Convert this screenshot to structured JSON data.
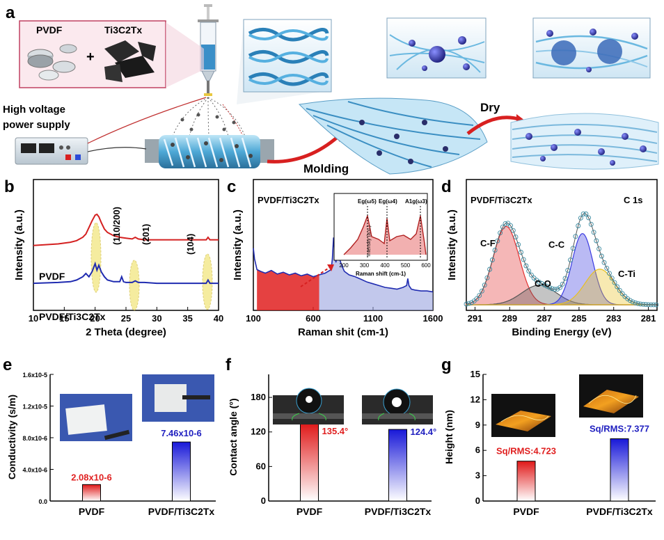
{
  "panel_a": {
    "label": "a",
    "pvdf": "PVDF",
    "plus": "+",
    "ti3c2tx": "Ti3C2Tx",
    "power_line1": "High voltage",
    "power_line2": "power supply",
    "molding": "Molding",
    "dry": "Dry"
  },
  "chart_data": [
    {
      "id": "b",
      "panel_label": "b",
      "type": "line",
      "xlabel": "2 Theta (degree)",
      "ylabel": "Intensity (a.u.)",
      "xlim": [
        10,
        40
      ],
      "xticks": [
        10,
        15,
        20,
        25,
        30,
        35,
        40
      ],
      "series": [
        {
          "name": "PVDF",
          "color": "#d42020",
          "x": [
            10,
            14,
            16,
            17,
            18,
            18.5,
            19,
            19.5,
            20,
            20.3,
            20.6,
            21,
            21.5,
            22,
            23,
            24,
            25,
            26,
            26.5,
            27,
            28,
            30,
            33,
            36,
            38,
            38.3,
            38.6,
            40
          ],
          "y": [
            0.62,
            0.64,
            0.66,
            0.68,
            0.72,
            0.76,
            0.84,
            0.92,
            0.99,
            1.0,
            0.97,
            0.9,
            0.82,
            0.78,
            0.74,
            0.72,
            0.71,
            0.7,
            0.72,
            0.7,
            0.69,
            0.69,
            0.69,
            0.69,
            0.69,
            0.72,
            0.69,
            0.69
          ]
        },
        {
          "name": "PVDF/Ti3C2Tx",
          "color": "#1f2bb0",
          "x": [
            10,
            14,
            16,
            17,
            18,
            18.5,
            19,
            19.5,
            19.8,
            20,
            20.3,
            20.6,
            21,
            21.5,
            22,
            23,
            24,
            24.3,
            24.6,
            25,
            26,
            26.5,
            27,
            28,
            30,
            33,
            36,
            38,
            38.3,
            38.6,
            40
          ],
          "y": [
            0.16,
            0.17,
            0.18,
            0.2,
            0.24,
            0.28,
            0.24,
            0.3,
            0.36,
            0.4,
            0.32,
            0.38,
            0.3,
            0.24,
            0.2,
            0.18,
            0.18,
            0.24,
            0.18,
            0.17,
            0.17,
            0.19,
            0.17,
            0.17,
            0.16,
            0.16,
            0.16,
            0.16,
            0.2,
            0.16,
            0.16
          ]
        }
      ],
      "peak_labels": [
        "(110/200)",
        "(201)",
        "(104)"
      ],
      "curve_labels": [
        "PVDF",
        "PVDF/Ti3C2Tx"
      ]
    },
    {
      "id": "c",
      "panel_label": "c",
      "type": "line",
      "title": "PVDF/Ti3C2Tx",
      "xlabel": "Raman shit (cm-1)",
      "ylabel": "Intensity (a.u.)",
      "xlim": [
        100,
        1600
      ],
      "xticks": [
        100,
        600,
        1100,
        1600
      ],
      "series": [
        {
          "name": "Raman",
          "color": "#1f2bb0",
          "x": [
            100,
            110,
            130,
            160,
            200,
            250,
            300,
            350,
            400,
            450,
            500,
            550,
            600,
            650,
            700,
            750,
            760,
            770,
            780,
            790,
            800,
            820,
            840,
            860,
            880,
            900,
            950,
            1000,
            1050,
            1100,
            1150,
            1200,
            1250,
            1300,
            1350,
            1380,
            1390,
            1400,
            1420,
            1450,
            1500,
            1550,
            1600
          ],
          "y": [
            0.62,
            0.5,
            0.38,
            0.36,
            0.34,
            0.37,
            0.33,
            0.35,
            0.32,
            0.34,
            0.31,
            0.33,
            0.3,
            0.32,
            0.34,
            0.38,
            0.5,
            0.74,
            0.55,
            0.46,
            0.6,
            0.5,
            0.42,
            0.36,
            0.34,
            0.32,
            0.3,
            0.27,
            0.24,
            0.22,
            0.2,
            0.18,
            0.17,
            0.16,
            0.18,
            0.2,
            0.28,
            0.2,
            0.16,
            0.15,
            0.14,
            0.14,
            0.13
          ]
        }
      ],
      "inset": {
        "xlabel": "Raman shift (cm-1)",
        "ylabel": "Intensity (a.u.)",
        "xticks": [
          200,
          300,
          400,
          500,
          600
        ],
        "modes": [
          "Eg(ω5)",
          "Eg(ω4)",
          "A1g(ω3)"
        ]
      }
    },
    {
      "id": "d",
      "panel_label": "d",
      "type": "area",
      "title": "PVDF/Ti3C2Tx",
      "subtitle": "C 1s",
      "xlabel": "Binding Energy (eV)",
      "ylabel": "Intensity (a.u.)",
      "xlim": [
        291.5,
        280.5
      ],
      "xticks": [
        291,
        289,
        287,
        285,
        283,
        281
      ],
      "components": [
        {
          "name": "C-F",
          "center": 289.2,
          "height": 0.88,
          "width": 0.75,
          "color": "#e23030"
        },
        {
          "name": "C-O",
          "center": 287.3,
          "height": 0.22,
          "width": 1.0,
          "color": "#555555"
        },
        {
          "name": "C-C",
          "center": 284.8,
          "height": 0.8,
          "width": 0.6,
          "color": "#3a3ae0"
        },
        {
          "name": "C-Ti",
          "center": 283.8,
          "height": 0.4,
          "width": 0.85,
          "color": "#e8c020"
        }
      ]
    },
    {
      "id": "e",
      "panel_label": "e",
      "type": "bar",
      "ylabel": "Conductivity (s/m)",
      "yticks": [
        "0.0",
        "4.0x10-6",
        "8.0x10-6",
        "1.2x10-5",
        "1.6x10-5"
      ],
      "ylim": [
        0,
        16
      ],
      "categories": [
        "PVDF",
        "PVDF/Ti3C2Tx"
      ],
      "values": [
        2.08,
        7.46
      ],
      "value_labels": [
        "2.08x10-6",
        "7.46x10-6"
      ],
      "colors": [
        "#e02020",
        "#2020c0"
      ]
    },
    {
      "id": "f",
      "panel_label": "f",
      "type": "bar",
      "ylabel": "Contact angle (°)",
      "yticks": [
        "0",
        "60",
        "120",
        "180"
      ],
      "ylim": [
        0,
        220
      ],
      "categories": [
        "PVDF",
        "PVDF/Ti3C2Tx"
      ],
      "values": [
        135.4,
        124.4
      ],
      "value_labels": [
        "135.4°",
        "124.4°"
      ],
      "colors": [
        "#e02020",
        "#2020c0"
      ]
    },
    {
      "id": "g",
      "panel_label": "g",
      "type": "bar",
      "ylabel": "Height (nm)",
      "yticks": [
        "0",
        "3",
        "6",
        "9",
        "12",
        "15"
      ],
      "ylim": [
        0,
        15
      ],
      "categories": [
        "PVDF",
        "PVDF/Ti3C2Tx"
      ],
      "values": [
        4.723,
        7.377
      ],
      "value_labels": [
        "Sq/RMS:4.723",
        "Sq/RMS:7.377"
      ],
      "colors": [
        "#e02020",
        "#2020c0"
      ]
    }
  ]
}
